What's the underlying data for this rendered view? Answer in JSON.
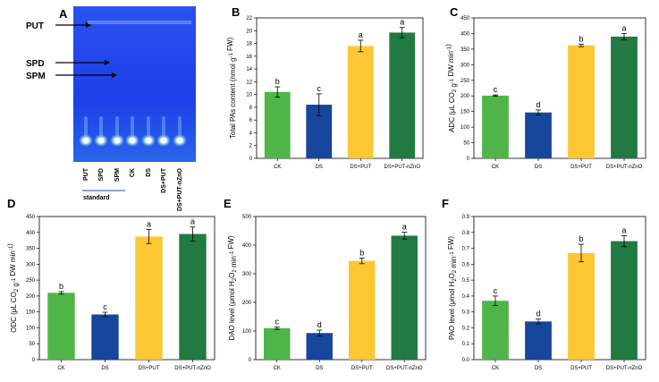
{
  "colors": {
    "CK": "#4fb548",
    "DS": "#17479c",
    "DS+PUT": "#fdc733",
    "DS+PUT-nZnO": "#217a41",
    "tlc_bg": "#1d3fe8"
  },
  "tlc": {
    "panel_label": "A",
    "band_labels": [
      "PUT",
      "SPD",
      "SPM"
    ],
    "lane_labels": [
      "PUT",
      "SPD",
      "SPM",
      "CK",
      "DS",
      "DS+PUT",
      "DS+PUT-nZnO"
    ],
    "standard_label": "standard"
  },
  "chart_data": [
    {
      "id": "B",
      "panel_label": "B",
      "type": "bar",
      "categories": [
        "CK",
        "DS",
        "DS+PUT",
        "DS+PUT-nZnO"
      ],
      "values": [
        10.4,
        8.4,
        17.6,
        19.7
      ],
      "errors": [
        0.8,
        1.7,
        0.9,
        0.8
      ],
      "letters": [
        "b",
        "c",
        "a",
        "a"
      ],
      "ylabel": "Total PAs content (nmol g-1 FW)",
      "ylim": [
        0,
        22
      ],
      "yticks": [
        0,
        2,
        4,
        6,
        8,
        10,
        12,
        14,
        16,
        18,
        20,
        22
      ]
    },
    {
      "id": "C",
      "panel_label": "C",
      "type": "bar",
      "categories": [
        "CK",
        "DS",
        "DS+PUT",
        "DS+PUT-nZnO"
      ],
      "values": [
        201,
        147,
        362,
        390
      ],
      "errors": [
        2,
        8,
        4,
        10
      ],
      "letters": [
        "c",
        "d",
        "b",
        "a"
      ],
      "ylabel": "ADC (μL CO2 g-1 DW min-1)",
      "ylim": [
        0,
        450
      ],
      "yticks": [
        0,
        50,
        100,
        150,
        200,
        250,
        300,
        350,
        400,
        450
      ]
    },
    {
      "id": "D",
      "panel_label": "D",
      "type": "bar",
      "categories": [
        "CK",
        "DS",
        "DS+PUT",
        "DS+PUT-nZnO"
      ],
      "values": [
        210,
        142,
        387,
        395
      ],
      "errors": [
        4,
        7,
        22,
        22
      ],
      "letters": [
        "b",
        "c",
        "a",
        "a"
      ],
      "ylabel": "ODC (μL CO2 g-1 DW min-1)",
      "ylim": [
        0,
        450
      ],
      "yticks": [
        0,
        50,
        100,
        150,
        200,
        250,
        300,
        350,
        400,
        450
      ]
    },
    {
      "id": "E",
      "panel_label": "E",
      "type": "bar",
      "categories": [
        "CK",
        "DS",
        "DS+PUT",
        "DS+PUT-nZnO"
      ],
      "values": [
        110,
        93,
        345,
        433
      ],
      "errors": [
        4,
        10,
        10,
        12
      ],
      "letters": [
        "c",
        "d",
        "b",
        "a"
      ],
      "ylabel": "DAO level (μmol H2O2 min-1 FW)",
      "ylim": [
        0,
        500
      ],
      "yticks": [
        0,
        100,
        200,
        300,
        400,
        500
      ]
    },
    {
      "id": "F",
      "panel_label": "F",
      "type": "bar",
      "categories": [
        "CK",
        "DS",
        "DS+PUT",
        "DS+PUT-nZnO"
      ],
      "values": [
        0.37,
        0.24,
        0.67,
        0.745
      ],
      "errors": [
        0.03,
        0.015,
        0.055,
        0.035
      ],
      "letters": [
        "c",
        "d",
        "b",
        "a"
      ],
      "ylabel": "PAO level (μmol H2O2 min-1 FW)",
      "ylim": [
        0,
        0.9
      ],
      "yticks": [
        0.0,
        0.1,
        0.2,
        0.3,
        0.4,
        0.5,
        0.6,
        0.7,
        0.8,
        0.9
      ]
    }
  ]
}
